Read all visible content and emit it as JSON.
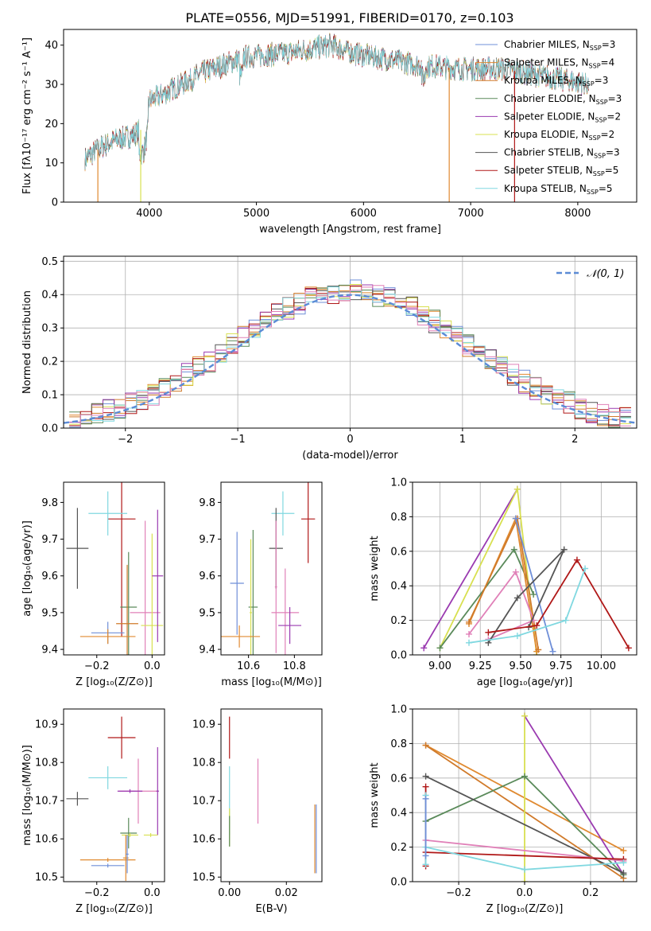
{
  "figure": {
    "title": "PLATE=0556, MJD=51991, FIBERID=0170, z=0.103"
  },
  "colors": {
    "Chabrier MILES": "#6f8fd8",
    "Salpeter MILES": "#e08a30",
    "Kroupa MILES": "#d07a2a",
    "Chabrier ELODIE": "#5a8a5a",
    "Salpeter ELODIE": "#9a3ab0",
    "Kroupa ELODIE": "#d8e050",
    "Chabrier STELIB": "#555555",
    "Salpeter STELIB": "#b01818",
    "Kroupa STELIB": "#80d8e0",
    "pink": "#e080b8",
    "normal": "#5b8bd6"
  },
  "chart_data": [
    {
      "id": "spectrum",
      "type": "line",
      "xlabel": "wavelength [Angstrom, rest frame]",
      "ylabel": "Flux [fλ10⁻¹⁷ erg cm⁻² s⁻¹ A⁻¹]",
      "xlim": [
        3200,
        8550
      ],
      "ylim": [
        0,
        44
      ],
      "xticks": [
        4000,
        5000,
        6000,
        7000,
        8000
      ],
      "yticks": [
        0,
        10,
        20,
        30,
        40
      ],
      "legend_position": "top-right",
      "legend": [
        {
          "base": "Chabrier MILES, N",
          "sub": "SSP",
          "tail": "=3",
          "color": "#6f8fd8"
        },
        {
          "base": "Salpeter MILES, N",
          "sub": "SSP",
          "tail": "=4",
          "color": "#e08a30"
        },
        {
          "base": "Kroupa MILES, N",
          "sub": "SSP",
          "tail": "=3",
          "color": "#d07a2a"
        },
        {
          "base": "Chabrier ELODIE, N",
          "sub": "SSP",
          "tail": "=3",
          "color": "#5a8a5a"
        },
        {
          "base": "Salpeter ELODIE, N",
          "sub": "SSP",
          "tail": "=2",
          "color": "#9a3ab0"
        },
        {
          "base": "Kroupa ELODIE, N",
          "sub": "SSP",
          "tail": "=2",
          "color": "#d8e050"
        },
        {
          "base": "Chabrier STELIB, N",
          "sub": "SSP",
          "tail": "=3",
          "color": "#555555"
        },
        {
          "base": "Salpeter STELIB, N",
          "sub": "SSP",
          "tail": "=5",
          "color": "#b01818"
        },
        {
          "base": "Kroupa STELIB, N",
          "sub": "SSP",
          "tail": "=5",
          "color": "#80d8e0"
        }
      ],
      "continuum": {
        "x": [
          3400,
          3550,
          3700,
          3850,
          3950,
          4000,
          4100,
          4300,
          4500,
          4700,
          4900,
          5100,
          5300,
          5500,
          5700,
          5900,
          6100,
          6300,
          6500,
          6700,
          6900,
          7100,
          7300,
          7500,
          7700,
          7900,
          8100
        ],
        "y": [
          11,
          14,
          16,
          17,
          19,
          26,
          27,
          30,
          33,
          35,
          37,
          37.5,
          38,
          39,
          40,
          38,
          37,
          36,
          35,
          34.5,
          34,
          34,
          34,
          33,
          32,
          31,
          30
        ]
      },
      "vertical_drops": [
        {
          "x": 3520,
          "color": "#e08a30"
        },
        {
          "x": 3920,
          "color": "#d8e050"
        },
        {
          "x": 6800,
          "color": "#e08a30"
        },
        {
          "x": 7410,
          "color": "#b01818"
        }
      ]
    },
    {
      "id": "residuals",
      "type": "histogram",
      "xlabel": "(data-model)/error",
      "ylabel": "Normed distribution",
      "xlim": [
        -2.55,
        2.55
      ],
      "ylim": [
        0,
        0.515
      ],
      "xticks": [
        -2,
        -1,
        0,
        1,
        2
      ],
      "yticks": [
        0.0,
        0.1,
        0.2,
        0.3,
        0.4,
        0.5
      ],
      "grid": true,
      "legend_position": "top-right",
      "legend_label": "𝒩(0, 1)",
      "bin_width": 0.1,
      "normal_curve": {
        "mean": 0,
        "sigma": 1
      }
    },
    {
      "id": "age_vs_Z",
      "type": "scatter",
      "xlabel": "Z [log₁₀(Z/Z⊙)]",
      "ylabel": "age  [log₁₀(age/yr)]",
      "xlim": [
        -0.32,
        0.045
      ],
      "ylim": [
        9.385,
        9.855
      ],
      "xticks": [
        -0.2,
        0.0
      ],
      "yticks": [
        9.4,
        9.5,
        9.6,
        9.7,
        9.8
      ],
      "points": [
        {
          "x": -0.27,
          "y": 9.675,
          "xe": 0.04,
          "ye": 0.11,
          "c": "#555555"
        },
        {
          "x": -0.11,
          "y": 9.755,
          "xe": 0.05,
          "ye": 0.32,
          "c": "#b01818"
        },
        {
          "x": -0.16,
          "y": 9.77,
          "xe": 0.07,
          "ye": 0.06,
          "c": "#80d8e0"
        },
        {
          "x": -0.085,
          "y": 9.515,
          "xe": 0.03,
          "ye": 0.15,
          "c": "#5a8a5a"
        },
        {
          "x": -0.09,
          "y": 9.47,
          "xe": 0.04,
          "ye": 0.16,
          "c": "#d07a2a"
        },
        {
          "x": -0.025,
          "y": 9.5,
          "xe": 0.055,
          "ye": 0.25,
          "c": "#e080b8"
        },
        {
          "x": 0.0,
          "y": 9.465,
          "xe": 0.04,
          "ye": 0.25,
          "c": "#d8e050"
        },
        {
          "x": 0.02,
          "y": 9.6,
          "xe": 0.02,
          "ye": 0.18,
          "c": "#9a3ab0"
        },
        {
          "x": -0.16,
          "y": 9.445,
          "xe": 0.06,
          "ye": 0.03,
          "c": "#6f8fd8"
        },
        {
          "x": -0.16,
          "y": 9.435,
          "xe": 0.1,
          "ye": 0.02,
          "c": "#e08a30"
        }
      ]
    },
    {
      "id": "age_vs_mass",
      "type": "scatter",
      "xlabel": "mass [log₁₀(M/M⊙)]",
      "ylabel": "",
      "xlim": [
        10.48,
        10.92
      ],
      "ylim": [
        9.385,
        9.855
      ],
      "xticks": [
        10.6,
        10.8
      ],
      "yticks": [
        9.4,
        9.5,
        9.6,
        9.7,
        9.8
      ],
      "points": [
        {
          "x": 10.86,
          "y": 9.755,
          "xe": 0.03,
          "ye": 0.12,
          "c": "#b01818"
        },
        {
          "x": 10.75,
          "y": 9.77,
          "xe": 0.05,
          "ye": 0.06,
          "c": "#80d8e0"
        },
        {
          "x": 10.72,
          "y": 9.675,
          "xe": 0.03,
          "ye": 0.11,
          "c": "#555555"
        },
        {
          "x": 10.62,
          "y": 9.515,
          "xe": 0.02,
          "ye": 0.21,
          "c": "#5a8a5a"
        },
        {
          "x": 10.61,
          "y": 9.5,
          "xe": 0.005,
          "ye": 0.2,
          "c": "#d8e050"
        },
        {
          "x": 10.72,
          "y": 9.57,
          "xe": 0.005,
          "ye": 0.18,
          "c": "#e080b8"
        },
        {
          "x": 10.76,
          "y": 9.5,
          "xe": 0.06,
          "ye": 0.12,
          "c": "#e080b8"
        },
        {
          "x": 10.78,
          "y": 9.465,
          "xe": 0.05,
          "ye": 0.05,
          "c": "#9a3ab0"
        },
        {
          "x": 10.55,
          "y": 9.58,
          "xe": 0.03,
          "ye": 0.14,
          "c": "#6f8fd8"
        },
        {
          "x": 10.56,
          "y": 9.435,
          "xe": 0.09,
          "ye": 0.03,
          "c": "#e08a30"
        }
      ]
    },
    {
      "id": "weight_vs_age",
      "type": "line",
      "xlabel": "age  [log₁₀(age/yr)]",
      "ylabel": "mass weight",
      "xlim": [
        8.83,
        10.22
      ],
      "ylim": [
        0,
        1.0
      ],
      "xticks": [
        9.0,
        9.25,
        9.5,
        9.75,
        10.0
      ],
      "yticks": [
        0.0,
        0.2,
        0.4,
        0.6,
        0.8,
        1.0
      ],
      "grid": true,
      "series": [
        {
          "c": "#9a3ab0",
          "x": [
            8.9,
            9.48
          ],
          "y": [
            0.04,
            0.96
          ]
        },
        {
          "c": "#d8e050",
          "x": [
            9.0,
            9.48,
            9.6
          ],
          "y": [
            0.04,
            0.96,
            0.0
          ]
        },
        {
          "c": "#5a8a5a",
          "x": [
            9.0,
            9.46,
            9.58
          ],
          "y": [
            0.04,
            0.61,
            0.35
          ]
        },
        {
          "c": "#e08a30",
          "x": [
            9.18,
            9.47,
            9.6
          ],
          "y": [
            0.18,
            0.79,
            0.02
          ]
        },
        {
          "c": "#d07a2a",
          "x": [
            9.18,
            9.48,
            9.61
          ],
          "y": [
            0.19,
            0.79,
            0.03
          ]
        },
        {
          "c": "#6f8fd8",
          "x": [
            9.47,
            9.7
          ],
          "y": [
            0.79,
            0.02
          ]
        },
        {
          "c": "#e080b8",
          "x": [
            9.18,
            9.47,
            9.58,
            9.3
          ],
          "y": [
            0.12,
            0.48,
            0.2,
            0.09
          ]
        },
        {
          "c": "#555555",
          "x": [
            9.3,
            9.48,
            9.77,
            9.55
          ],
          "y": [
            0.07,
            0.33,
            0.61,
            0.16
          ]
        },
        {
          "c": "#b01818",
          "x": [
            9.3,
            9.6,
            9.85,
            10.17
          ],
          "y": [
            0.13,
            0.17,
            0.55,
            0.04
          ]
        },
        {
          "c": "#80d8e0",
          "x": [
            9.18,
            9.48,
            9.78,
            9.9
          ],
          "y": [
            0.07,
            0.11,
            0.2,
            0.5
          ]
        }
      ]
    },
    {
      "id": "mass_vs_Z",
      "type": "scatter",
      "xlabel": "Z [log₁₀(Z/Z⊙)]",
      "ylabel": "mass [log₁₀(M/M⊙)]",
      "xlim": [
        -0.32,
        0.045
      ],
      "ylim": [
        10.488,
        10.94
      ],
      "xticks": [
        -0.2,
        0.0
      ],
      "yticks": [
        10.5,
        10.6,
        10.7,
        10.8,
        10.9
      ],
      "points": [
        {
          "x": -0.11,
          "y": 10.865,
          "xe": 0.05,
          "ye": 0.055,
          "c": "#b01818"
        },
        {
          "x": -0.27,
          "y": 10.705,
          "xe": 0.04,
          "ye": 0.018,
          "c": "#555555"
        },
        {
          "x": -0.16,
          "y": 10.76,
          "xe": 0.07,
          "ye": 0.03,
          "c": "#80d8e0"
        },
        {
          "x": -0.05,
          "y": 10.725,
          "xe": 0.07,
          "ye": 0.085,
          "c": "#e080b8"
        },
        {
          "x": -0.08,
          "y": 10.725,
          "xe": 0.045,
          "ye": 0.005,
          "c": "#9a3ab0"
        },
        {
          "x": 0.02,
          "y": 10.725,
          "xe": 0.005,
          "ye": 0.115,
          "c": "#9a3ab0"
        },
        {
          "x": -0.085,
          "y": 10.615,
          "xe": 0.03,
          "ye": 0.04,
          "c": "#5a8a5a"
        },
        {
          "x": -0.08,
          "y": 10.61,
          "xe": 0.03,
          "ye": 0.005,
          "c": "#d8e050"
        },
        {
          "x": -0.005,
          "y": 10.61,
          "xe": 0.025,
          "ye": 0.005,
          "c": "#d8e050"
        },
        {
          "x": -0.16,
          "y": 10.545,
          "xe": 0.1,
          "ye": 0.005,
          "c": "#e08a30"
        },
        {
          "x": -0.095,
          "y": 10.55,
          "xe": 0.01,
          "ye": 0.06,
          "c": "#e08a30"
        },
        {
          "x": -0.16,
          "y": 10.53,
          "xe": 0.06,
          "ye": 0.005,
          "c": "#6f8fd8"
        },
        {
          "x": -0.09,
          "y": 10.56,
          "xe": 0.005,
          "ye": 0.05,
          "c": "#6f8fd8"
        }
      ]
    },
    {
      "id": "mass_vs_ebv",
      "type": "scatter",
      "xlabel": "E(B-V)",
      "ylabel": "",
      "xlim": [
        -0.003,
        0.0325
      ],
      "ylim": [
        10.488,
        10.94
      ],
      "xticks": [
        0.0,
        0.02
      ],
      "yticks": [
        10.5,
        10.6,
        10.7,
        10.8,
        10.9
      ],
      "points": [
        {
          "x": 0.0,
          "y": 10.865,
          "xe": 0.0,
          "ye": 0.055,
          "c": "#b01818"
        },
        {
          "x": 0.0,
          "y": 10.7,
          "xe": 0.0,
          "ye": 0.09,
          "c": "#80d8e0"
        },
        {
          "x": 0.0,
          "y": 10.63,
          "xe": 0.0,
          "ye": 0.05,
          "c": "#d8e050"
        },
        {
          "x": 0.0,
          "y": 10.62,
          "xe": 0.0,
          "ye": 0.04,
          "c": "#5a8a5a"
        },
        {
          "x": 0.01,
          "y": 10.725,
          "xe": 0.0,
          "ye": 0.085,
          "c": "#e080b8"
        },
        {
          "x": 0.03,
          "y": 10.6,
          "xe": 0.0,
          "ye": 0.09,
          "c": "#e08a30"
        },
        {
          "x": 0.0305,
          "y": 10.6,
          "xe": 0.0,
          "ye": 0.09,
          "c": "#6f8fd8"
        }
      ]
    },
    {
      "id": "weight_vs_Z",
      "type": "line",
      "xlabel": "Z [log₁₀(Z/Z⊙)]",
      "ylabel": "mass weight",
      "xlim": [
        -0.34,
        0.34
      ],
      "ylim": [
        0,
        1.0
      ],
      "xticks": [
        -0.2,
        0.0,
        0.2
      ],
      "yticks": [
        0.0,
        0.2,
        0.4,
        0.6,
        0.8,
        1.0
      ],
      "grid": true,
      "series": [
        {
          "c": "#e08a30",
          "x": [
            -0.3,
            0.3
          ],
          "y": [
            0.79,
            0.18
          ]
        },
        {
          "c": "#d07a2a",
          "x": [
            -0.3,
            0.3
          ],
          "y": [
            0.79,
            0.02
          ]
        },
        {
          "c": "#9a3ab0",
          "x": [
            0.0,
            0.3
          ],
          "y": [
            0.96,
            0.04
          ]
        },
        {
          "c": "#d8e050",
          "x": [
            0.0,
            0.0
          ],
          "y": [
            0.96,
            0.0
          ]
        },
        {
          "c": "#5a8a5a",
          "x": [
            -0.3,
            0.0,
            0.3
          ],
          "y": [
            0.35,
            0.61,
            0.04
          ]
        },
        {
          "c": "#555555",
          "x": [
            -0.3,
            0.3
          ],
          "y": [
            0.61,
            0.05
          ]
        },
        {
          "c": "#e080b8",
          "x": [
            -0.3,
            0.3
          ],
          "y": [
            0.24,
            0.12
          ]
        },
        {
          "c": "#b01818",
          "x": [
            -0.3,
            0.3
          ],
          "y": [
            0.17,
            0.13
          ]
        },
        {
          "c": "#80d8e0",
          "x": [
            -0.3,
            0.0,
            0.3
          ],
          "y": [
            0.2,
            0.07,
            0.11
          ]
        },
        {
          "c": "#b01818",
          "x": [
            -0.3,
            -0.3
          ],
          "y": [
            0.09,
            0.55
          ]
        },
        {
          "c": "#80d8e0",
          "x": [
            -0.3,
            -0.3
          ],
          "y": [
            0.1,
            0.5
          ]
        },
        {
          "c": "#6f8fd8",
          "x": [
            -0.3,
            -0.3
          ],
          "y": [
            0.15,
            0.48
          ]
        }
      ]
    }
  ]
}
